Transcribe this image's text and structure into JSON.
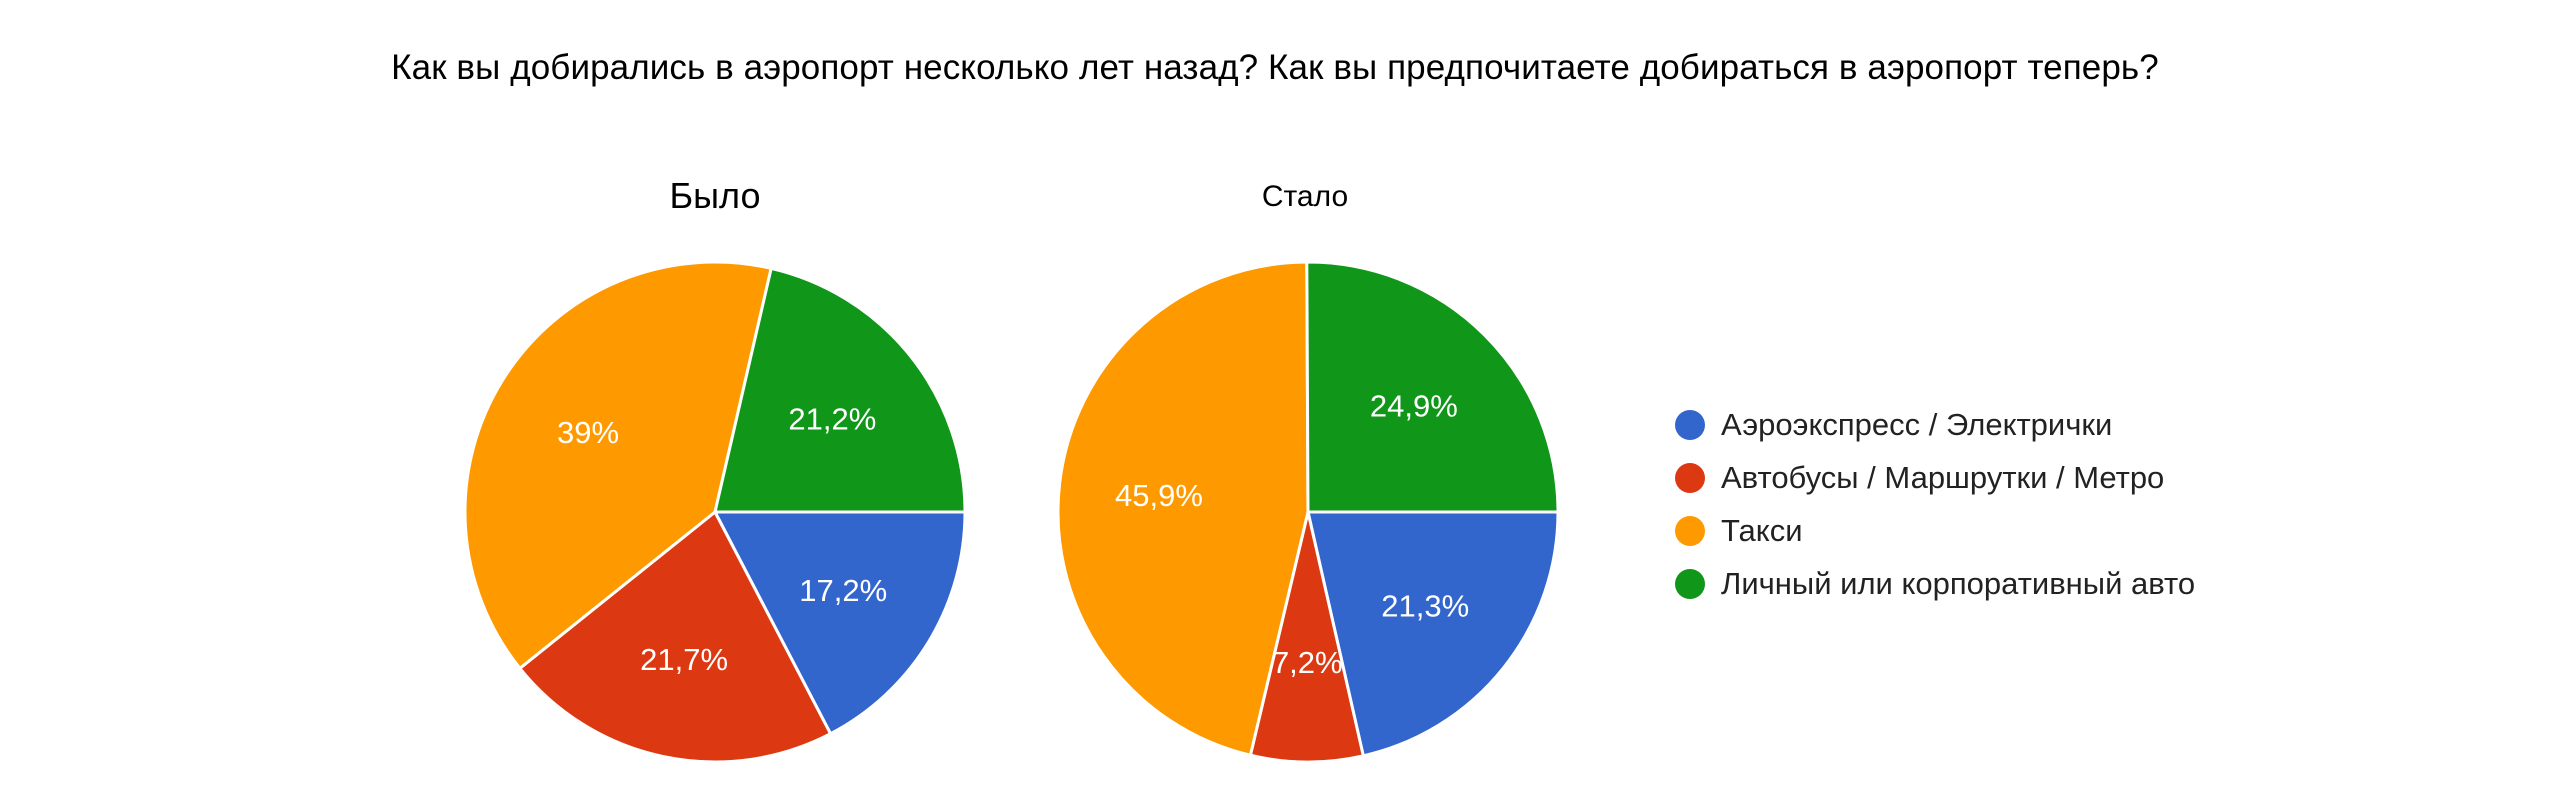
{
  "title": "Как вы добирались в аэропорт несколько лет назад? Как вы предпочитаете добираться в аэропорт теперь?",
  "legend": [
    {
      "label": "Аэроэкспресс / Электрички",
      "color": "#3366cc"
    },
    {
      "label": "Автобусы / Маршрутки / Метро",
      "color": "#dc3912"
    },
    {
      "label": "Такси",
      "color": "#ff9900"
    },
    {
      "label": "Личный или корпоративный авто",
      "color": "#109618"
    }
  ],
  "chart_data": [
    {
      "type": "pie",
      "title": "Было",
      "categories": [
        "Аэроэкспресс / Электрички",
        "Автобусы / Маршрутки / Метро",
        "Такси",
        "Личный или корпоративный авто"
      ],
      "values": [
        17.2,
        21.7,
        39,
        21.2
      ],
      "labels": [
        "17,2%",
        "21,7%",
        "39%",
        "21,2%"
      ],
      "colors": [
        "#3366cc",
        "#dc3912",
        "#ff9900",
        "#109618"
      ],
      "legend_position": "right"
    },
    {
      "type": "pie",
      "title": "Стало",
      "categories": [
        "Аэроэкспресс / Электрички",
        "Автобусы / Маршрутки / Метро",
        "Такси",
        "Личный или корпоративный авто"
      ],
      "values": [
        21.3,
        7.2,
        45.9,
        24.9
      ],
      "labels": [
        "21,3%",
        "7,2%",
        "45,9%",
        "24,9%"
      ],
      "colors": [
        "#3366cc",
        "#dc3912",
        "#ff9900",
        "#109618"
      ],
      "legend_position": "right"
    }
  ]
}
